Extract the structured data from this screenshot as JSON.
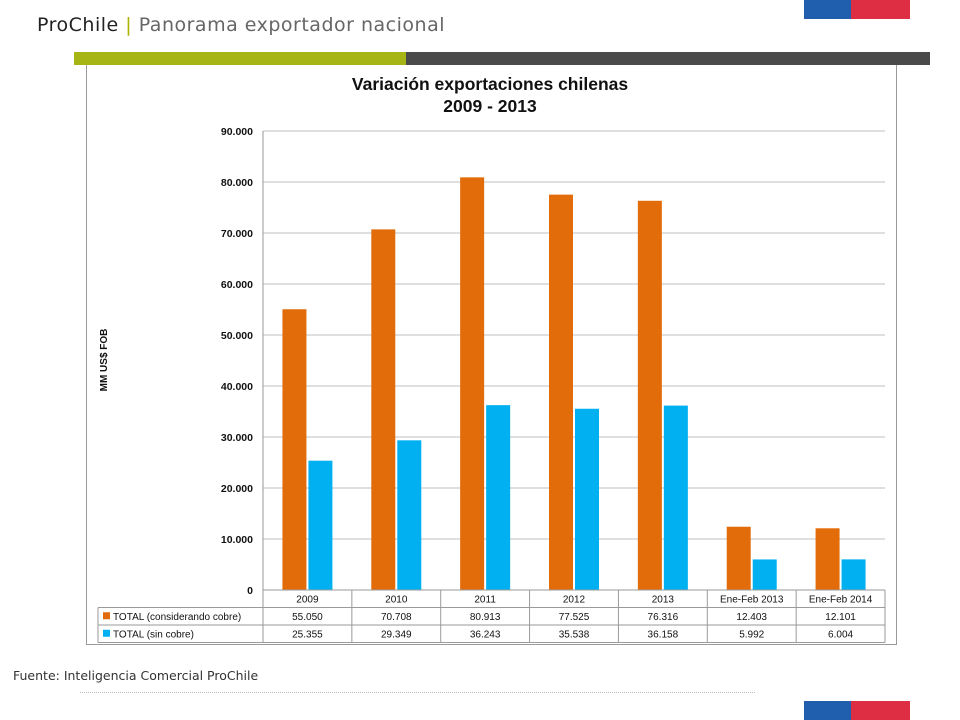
{
  "header": {
    "brand": "ProChile",
    "separator": "|",
    "subtitle": "Panorama exportador nacional"
  },
  "colors": {
    "accent_green": "#a6b414",
    "flag_blue": "#1f5fae",
    "flag_red": "#dd2e44",
    "series_orange": "#e36c0a",
    "series_blue": "#00b0f0"
  },
  "footer": {
    "source": "Fuente: Inteligencia Comercial ProChile"
  },
  "chart_data": {
    "type": "bar",
    "title": "Variación exportaciones chilenas",
    "subtitle": "2009 - 2013",
    "ylabel": "MM US$ FOB",
    "ylim": [
      0,
      90000
    ],
    "yticks": [
      "0",
      "10.000",
      "20.000",
      "30.000",
      "40.000",
      "50.000",
      "60.000",
      "70.000",
      "80.000",
      "90.000"
    ],
    "categories": [
      "2009",
      "2010",
      "2011",
      "2012",
      "2013",
      "Ene-Feb 2013",
      "Ene-Feb 2014"
    ],
    "series": [
      {
        "name": "TOTAL (considerando cobre)",
        "color": "#e36c0a",
        "values": [
          55050,
          70708,
          80913,
          77525,
          76316,
          12403,
          12101
        ],
        "labels": [
          "55.050",
          "70.708",
          "80.913",
          "77.525",
          "76.316",
          "12.403",
          "12.101"
        ]
      },
      {
        "name": "TOTAL (sin cobre)",
        "color": "#00b0f0",
        "values": [
          25355,
          29349,
          36243,
          35538,
          36158,
          5992,
          6004
        ],
        "labels": [
          "25.355",
          "29.349",
          "36.243",
          "35.538",
          "36.158",
          "5.992",
          "6.004"
        ]
      }
    ],
    "grid": true,
    "legend": "data-table"
  }
}
